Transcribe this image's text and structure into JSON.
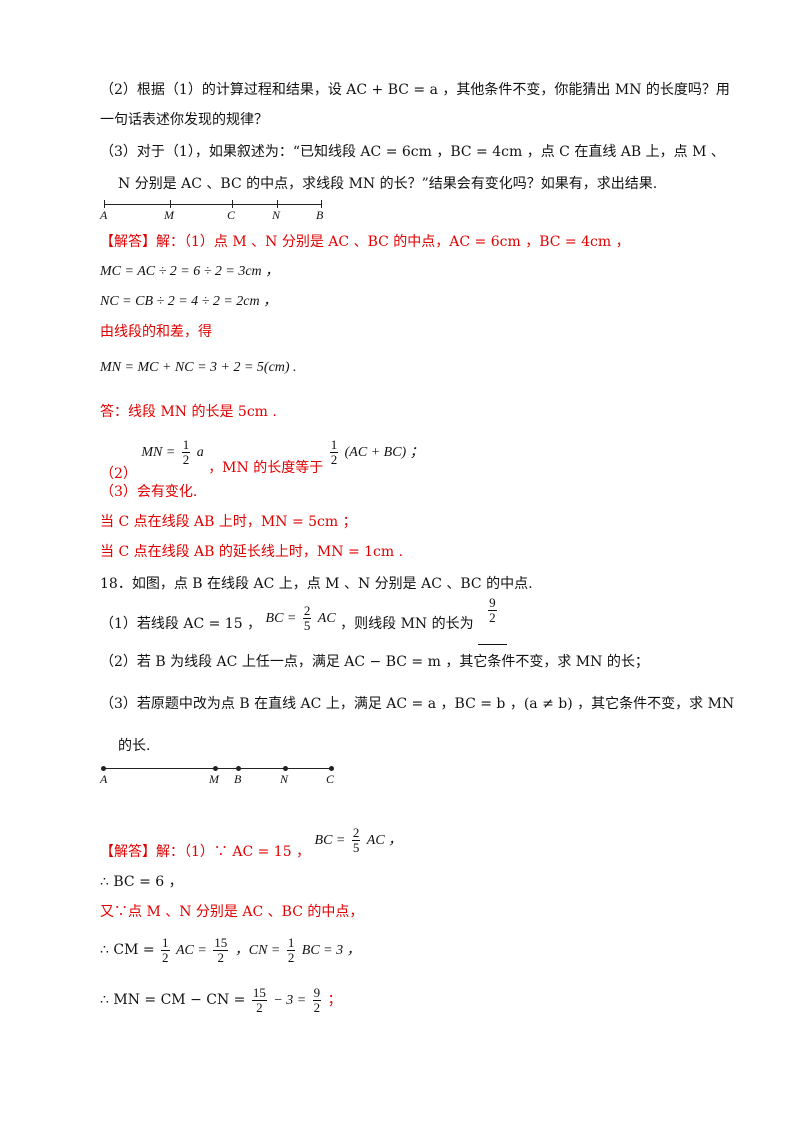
{
  "q17": {
    "p2_line1": "（2）根据（1）的计算过程和结果，设 AC + BC = a ，其他条件不变，你能猜出 MN 的长度吗？用",
    "p2_line2": "一句话表述你发现的规律？",
    "p3_line1": "（3）对于（1），如果叙述为：“已知线段 AC = 6cm ，BC = 4cm ，点 C 在直线 AB 上，点 M 、",
    "p3_line2": "N 分别是 AC 、BC 的中点，求线段 MN 的长？”结果会有变化吗？如果有，求出结果.",
    "diagram_labels": [
      "A",
      "M",
      "C",
      "N",
      "B"
    ]
  },
  "a17": {
    "line1": "【解答】解：（1）点 M 、N 分别是 AC 、BC 的中点，AC = 6cm ，BC = 4cm ，",
    "line2": "MC = AC ÷ 2 = 6 ÷ 2 = 3cm ，",
    "line3": "NC = CB ÷ 2 = 4 ÷ 2 = 2cm ，",
    "line4": "由线段的和差，得",
    "line5": "MN = MC + NC = 3 + 2 = 5(cm) .",
    "line6": "答：线段 MN 的长是 5cm .",
    "line7_prefix": "（2）",
    "line7_eq": "MN =",
    "line7_num": "1",
    "line7_den": "2",
    "line7_a": "a",
    "line7_mid": " ，MN 的长度等于",
    "line7_num2": "1",
    "line7_den2": "2",
    "line7_tail": "(AC + BC) ；",
    "line8": "（3）会有变化.",
    "line9": "当 C 点在线段 AB 上时，MN = 5cm ；",
    "line10": "当 C 点在线段 AB 的延长线上时，MN = 1cm ."
  },
  "q18": {
    "title": "18．如图，点 B 在线段 AC 上，点 M 、N 分别是 AC 、BC 的中点.",
    "p1_pre": "（1）若线段 AC = 15 ，",
    "p1_bc": "BC =",
    "p1_num": "2",
    "p1_den": "5",
    "p1_ac": "AC",
    "p1_post": " ，则线段 MN 的长为",
    "p1_ans_num": "9",
    "p1_ans_den": "2",
    "p2": "（2）若 B 为线段 AC 上任一点，满足 AC − BC = m ，其它条件不变，求 MN 的长；",
    "p3_line1": "（3）若原题中改为点 B 在直线 AC 上，满足 AC = a ，BC = b ，(a ≠ b) ，其它条件不变，求 MN",
    "p3_line2": "的长.",
    "diagram_labels": [
      "A",
      "M",
      "B",
      "N",
      "C"
    ]
  },
  "a18": {
    "line1_pre": "【解答】解：（1）∵ AC = 15 ，",
    "line1_bc": "BC =",
    "line1_num": "2",
    "line1_den": "5",
    "line1_ac": "AC ，",
    "line2": "∴ BC = 6 ，",
    "line3": "又∵点 M 、N 分别是 AC 、BC 的中点，",
    "line4_pre": "∴ CM =",
    "line4_n1": "1",
    "line4_d1": "2",
    "line4_mid": "AC =",
    "line4_n2": "15",
    "line4_d2": "2",
    "line4_cn": " ，CN =",
    "line4_n3": "1",
    "line4_d3": "2",
    "line4_end": "BC = 3 ，",
    "line5_pre": "∴ MN = CM − CN =",
    "line5_n1": "15",
    "line5_d1": "2",
    "line5_mid": "− 3 =",
    "line5_n2": "9",
    "line5_d2": "2",
    "line5_end": " ；"
  }
}
